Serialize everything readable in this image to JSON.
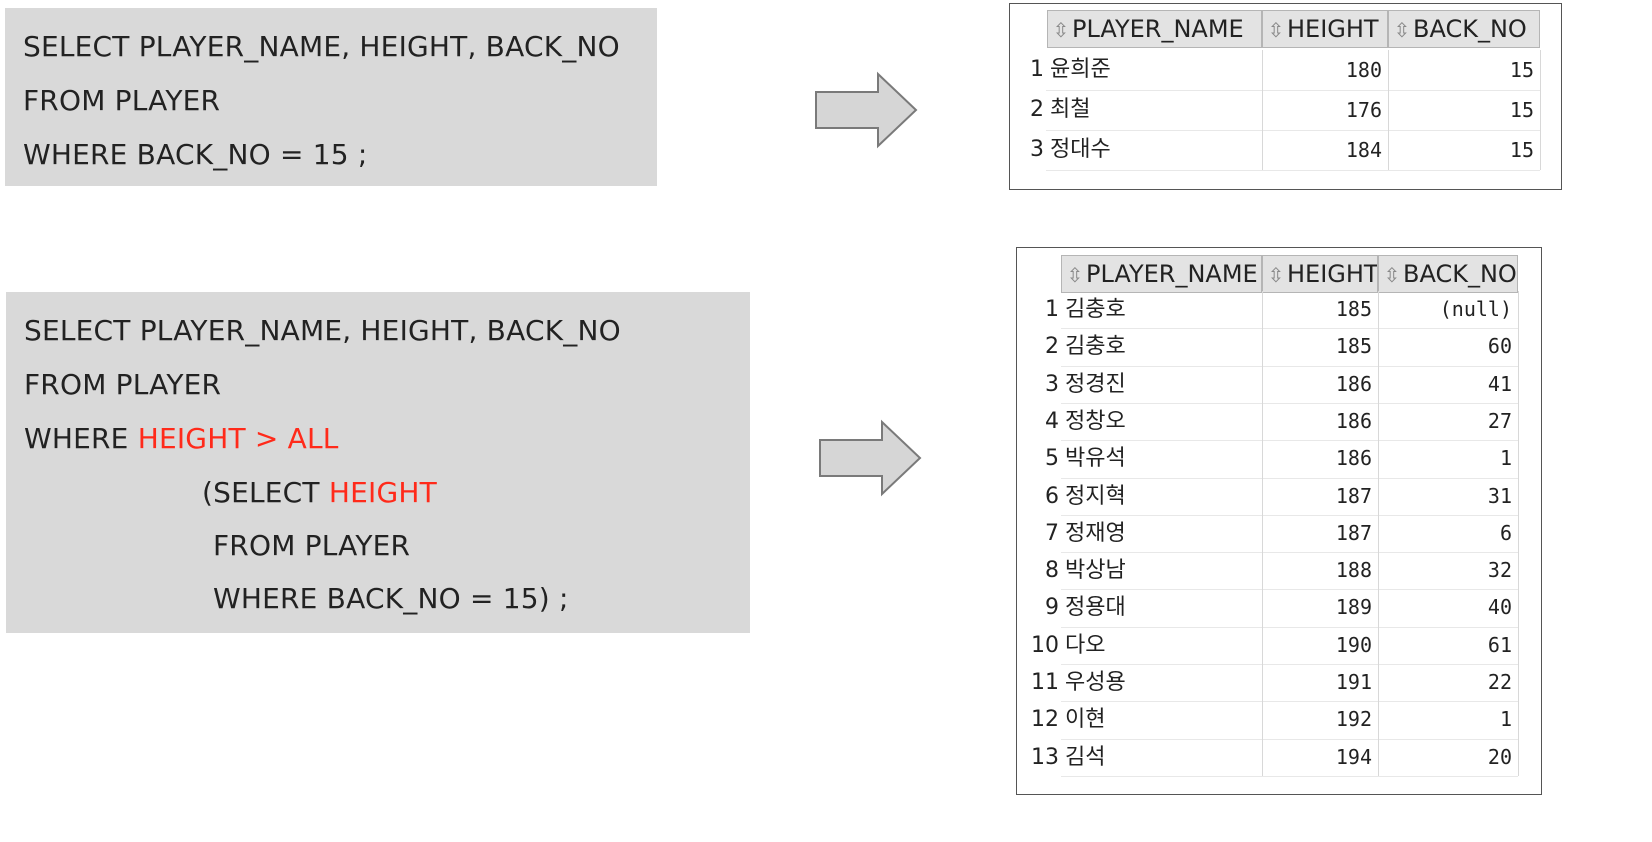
{
  "query1": {
    "lines": [
      "SELECT PLAYER_NAME, HEIGHT, BACK_NO",
      "FROM PLAYER",
      "WHERE BACK_NO = 15 ;"
    ]
  },
  "query2": {
    "line1": "SELECT PLAYER_NAME, HEIGHT, BACK_NO",
    "line2": "FROM PLAYER",
    "line3_prefix": "WHERE ",
    "line3_highlight": "HEIGHT > ALL",
    "line4_prefix": "(SELECT ",
    "line4_highlight": "HEIGHT",
    "line5": "FROM PLAYER",
    "line6": "WHERE BACK_NO = 15) ;"
  },
  "colors": {
    "code_bg": "#d9d9d9",
    "highlight": "#ff2a1a",
    "arrow_fill": "#d6d6d6",
    "arrow_stroke": "#7a7a7a"
  },
  "result1": {
    "columns": [
      "PLAYER_NAME",
      "HEIGHT",
      "BACK_NO"
    ],
    "sort_icon": "sort-updown-icon",
    "rows": [
      {
        "n": "1",
        "name": "윤희준",
        "height": "180",
        "back": "15"
      },
      {
        "n": "2",
        "name": "최철",
        "height": "176",
        "back": "15"
      },
      {
        "n": "3",
        "name": "정대수",
        "height": "184",
        "back": "15"
      }
    ]
  },
  "result2": {
    "columns": [
      "PLAYER_NAME",
      "HEIGHT",
      "BACK_NO"
    ],
    "sort_icon": "sort-updown-icon",
    "rows": [
      {
        "n": "1",
        "name": "김충호",
        "height": "185",
        "back": "(null)"
      },
      {
        "n": "2",
        "name": "김충호",
        "height": "185",
        "back": "60"
      },
      {
        "n": "3",
        "name": "정경진",
        "height": "186",
        "back": "41"
      },
      {
        "n": "4",
        "name": "정창오",
        "height": "186",
        "back": "27"
      },
      {
        "n": "5",
        "name": "박유석",
        "height": "186",
        "back": "1"
      },
      {
        "n": "6",
        "name": "정지혁",
        "height": "187",
        "back": "31"
      },
      {
        "n": "7",
        "name": "정재영",
        "height": "187",
        "back": "6"
      },
      {
        "n": "8",
        "name": "박상남",
        "height": "188",
        "back": "32"
      },
      {
        "n": "9",
        "name": "정용대",
        "height": "189",
        "back": "40"
      },
      {
        "n": "10",
        "name": "다오",
        "height": "190",
        "back": "61"
      },
      {
        "n": "11",
        "name": "우성용",
        "height": "191",
        "back": "22"
      },
      {
        "n": "12",
        "name": "이현",
        "height": "192",
        "back": "1"
      },
      {
        "n": "13",
        "name": "김석",
        "height": "194",
        "back": "20"
      }
    ]
  }
}
